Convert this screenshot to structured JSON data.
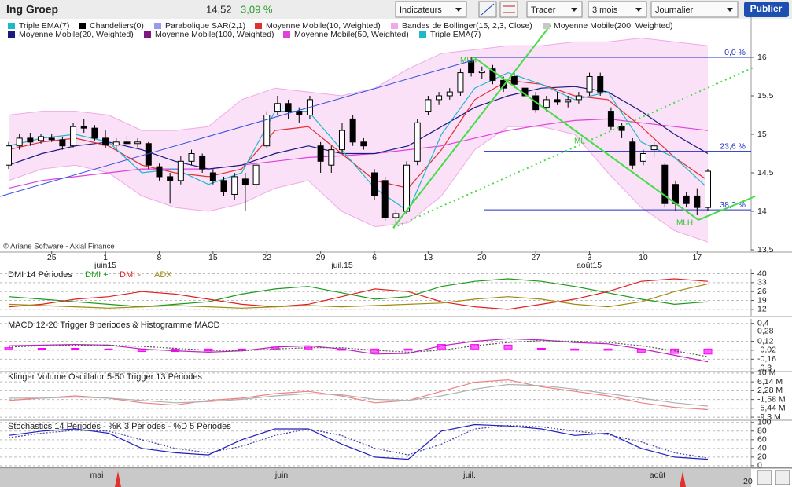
{
  "toolbar": {
    "name": "Ing Groep",
    "price": "14,52",
    "change": "3,09 %",
    "menus": [
      "Indicateurs",
      "Tracer",
      "3 mois",
      "Journalier"
    ],
    "button": "Publier"
  },
  "legend": [
    {
      "name": "Triple EMA(7)",
      "color": "#1fb8c8"
    },
    {
      "name": "Chandeliers(0)",
      "color": "#000000"
    },
    {
      "name": "Parabolique SAR(2,1)",
      "color": "#9999ee"
    },
    {
      "name": "Moyenne Mobile(10, Weighted)",
      "color": "#e03030"
    },
    {
      "name": "Bandes de Bollinger(15, 2,3, Close)",
      "color": "#f0a8e8"
    },
    {
      "name": "Moyenne Mobile(200, Weighted)",
      "color": "#c8c8c8"
    },
    {
      "name": "Moyenne Mobile(20, Weighted)",
      "color": "#1a1a80"
    },
    {
      "name": "Moyenne Mobile(100, Weighted)",
      "color": "#801880"
    },
    {
      "name": "Moyenne Mobile(50, Weighted)",
      "color": "#e040e0"
    },
    {
      "name": "Triple EMA(7)",
      "color": "#1fb8c8"
    }
  ],
  "watermark": "© Ariane Software - Axial Finance",
  "navigator": {
    "labels": [
      "mai",
      "juin",
      "juil.",
      "août"
    ],
    "corner": "20"
  },
  "chart_data": [
    {
      "type": "candlestick",
      "categories": [
        null,
        null,
        null,
        null,
        "25",
        null,
        null,
        null,
        null,
        "1",
        null,
        null,
        null,
        null,
        "8",
        null,
        null,
        null,
        null,
        "15",
        null,
        null,
        null,
        null,
        "22",
        null,
        null,
        null,
        null,
        "29",
        null,
        null,
        null,
        null,
        "6",
        null,
        null,
        null,
        null,
        "13",
        null,
        null,
        null,
        null,
        "20",
        null,
        null,
        null,
        null,
        "27",
        null,
        null,
        null,
        null,
        "3",
        null,
        null,
        null,
        null,
        "10",
        null,
        null,
        null,
        null,
        "17",
        null
      ],
      "month_labels": [
        "juin15",
        "juil.15",
        "août15"
      ],
      "ohlc": [
        [
          14.6,
          14.9,
          14.55,
          14.85
        ],
        [
          14.85,
          15.0,
          14.8,
          14.95
        ],
        [
          14.95,
          15.02,
          14.85,
          14.9
        ],
        [
          14.92,
          15.0,
          14.88,
          14.97
        ],
        [
          14.95,
          15.0,
          14.9,
          14.93
        ],
        [
          14.93,
          14.97,
          14.8,
          14.85
        ],
        [
          14.85,
          15.15,
          14.83,
          15.1
        ],
        [
          15.1,
          15.2,
          15.02,
          15.08
        ],
        [
          15.08,
          15.12,
          14.92,
          14.95
        ],
        [
          14.95,
          15.05,
          14.82,
          14.86
        ],
        [
          14.86,
          14.95,
          14.8,
          14.9
        ],
        [
          14.9,
          14.98,
          14.85,
          14.88
        ],
        [
          14.88,
          14.95,
          14.83,
          14.9
        ],
        [
          14.88,
          14.9,
          14.55,
          14.6
        ],
        [
          14.58,
          14.62,
          14.4,
          14.45
        ],
        [
          14.45,
          14.5,
          14.1,
          14.4
        ],
        [
          14.4,
          14.72,
          14.35,
          14.65
        ],
        [
          14.65,
          14.8,
          14.6,
          14.75
        ],
        [
          14.72,
          14.75,
          14.5,
          14.55
        ],
        [
          14.5,
          14.55,
          14.35,
          14.4
        ],
        [
          14.4,
          14.45,
          14.2,
          14.25
        ],
        [
          14.22,
          14.5,
          14.15,
          14.45
        ],
        [
          14.42,
          14.5,
          14.0,
          14.35
        ],
        [
          14.35,
          14.65,
          14.3,
          14.6
        ],
        [
          14.85,
          15.3,
          14.82,
          15.25
        ],
        [
          15.3,
          15.5,
          15.25,
          15.4
        ],
        [
          15.4,
          15.45,
          15.2,
          15.3
        ],
        [
          15.3,
          15.35,
          15.15,
          15.25
        ],
        [
          15.25,
          15.5,
          15.2,
          15.45
        ],
        [
          14.85,
          14.9,
          14.5,
          14.65
        ],
        [
          14.6,
          14.85,
          14.5,
          14.8
        ],
        [
          14.8,
          15.15,
          14.75,
          15.05
        ],
        [
          15.2,
          15.25,
          14.85,
          14.9
        ],
        [
          14.9,
          14.95,
          14.8,
          14.85
        ],
        [
          14.5,
          14.55,
          14.15,
          14.2
        ],
        [
          14.4,
          14.45,
          13.88,
          13.92
        ],
        [
          13.92,
          14.02,
          13.82,
          13.97
        ],
        [
          14.0,
          14.65,
          13.97,
          14.6
        ],
        [
          14.65,
          15.2,
          14.6,
          15.15
        ],
        [
          15.3,
          15.5,
          15.25,
          15.45
        ],
        [
          15.45,
          15.55,
          15.38,
          15.5
        ],
        [
          15.5,
          15.6,
          15.45,
          15.55
        ],
        [
          15.55,
          15.85,
          15.5,
          15.8
        ],
        [
          15.95,
          16.0,
          15.75,
          15.8
        ],
        [
          15.8,
          15.88,
          15.72,
          15.82
        ],
        [
          15.85,
          15.9,
          15.65,
          15.7
        ],
        [
          15.7,
          15.75,
          15.55,
          15.6
        ],
        [
          15.75,
          15.8,
          15.6,
          15.65
        ],
        [
          15.6,
          15.65,
          15.45,
          15.5
        ],
        [
          15.5,
          15.55,
          15.28,
          15.32
        ],
        [
          15.35,
          15.5,
          15.3,
          15.45
        ],
        [
          15.45,
          15.55,
          15.38,
          15.42
        ],
        [
          15.42,
          15.5,
          15.35,
          15.45
        ],
        [
          15.45,
          15.55,
          15.4,
          15.5
        ],
        [
          15.55,
          15.8,
          15.5,
          15.75
        ],
        [
          15.75,
          15.8,
          15.5,
          15.55
        ],
        [
          15.3,
          15.35,
          15.05,
          15.1
        ],
        [
          15.1,
          15.15,
          14.95,
          15.05
        ],
        [
          14.9,
          14.95,
          14.55,
          14.6
        ],
        [
          14.65,
          14.8,
          14.6,
          14.75
        ],
        [
          14.8,
          14.9,
          14.7,
          14.85
        ],
        [
          14.6,
          14.62,
          14.05,
          14.1
        ],
        [
          14.35,
          14.4,
          14.0,
          14.1
        ],
        [
          14.2,
          14.25,
          14.05,
          14.1
        ],
        [
          14.2,
          14.3,
          13.95,
          14.05
        ],
        [
          14.05,
          14.55,
          14.0,
          14.52
        ]
      ],
      "up_color": "#ffffff",
      "down_color": "#000000",
      "ylim": [
        13.48,
        16.52
      ],
      "yticks": [
        {
          "value": 13.5,
          "label": "13,5"
        },
        14,
        {
          "value": 14.5,
          "label": "14,5"
        },
        15,
        {
          "value": 15.5,
          "label": "15,5"
        },
        16
      ],
      "band": {
        "color": "#f0a8e8",
        "upper": [
          15.25,
          15.3,
          15.3,
          15.25,
          15.05,
          15.05,
          15.1,
          15.45,
          15.6,
          15.55,
          15.5,
          15.6,
          15.85,
          16.05,
          16.1,
          16.15,
          16.15,
          16.2,
          16.2,
          16.25,
          16.2,
          16.15
        ],
        "lower": [
          14.4,
          14.55,
          14.6,
          14.5,
          14.2,
          14.05,
          14.0,
          14.1,
          14.3,
          14.4,
          14.0,
          13.8,
          13.85,
          14.2,
          14.8,
          15.1,
          15.1,
          15.0,
          14.5,
          14.05,
          13.75,
          13.6
        ]
      },
      "overlays": [
        {
          "color": "#e040e0",
          "values": [
            14.3,
            14.4,
            14.45,
            14.5,
            14.55,
            14.55,
            14.55,
            14.6,
            14.65,
            14.7,
            14.72,
            14.75,
            14.8,
            14.85,
            14.95,
            15.05,
            15.12,
            15.18,
            15.2,
            15.15,
            15.1,
            15.05
          ]
        },
        {
          "color": "#1a1a80",
          "values": [
            14.6,
            14.75,
            14.85,
            14.9,
            14.8,
            14.65,
            14.55,
            14.6,
            14.75,
            14.85,
            14.75,
            14.75,
            14.85,
            15.1,
            15.35,
            15.5,
            15.6,
            15.62,
            15.55,
            15.3,
            15.0,
            14.75
          ]
        },
        {
          "color": "#e03030",
          "values": [
            14.8,
            14.9,
            14.95,
            14.85,
            14.6,
            14.5,
            14.45,
            14.55,
            15.05,
            15.1,
            14.75,
            14.4,
            14.3,
            14.8,
            15.45,
            15.7,
            15.65,
            15.5,
            15.45,
            15.1,
            14.7,
            14.4
          ]
        },
        {
          "color": "#1fb8c8",
          "values": [
            14.85,
            14.95,
            15.0,
            14.9,
            14.5,
            14.55,
            14.35,
            14.5,
            15.3,
            15.3,
            14.8,
            14.3,
            14.0,
            15.0,
            15.6,
            15.8,
            15.65,
            15.45,
            15.55,
            14.9,
            14.7,
            14.3
          ]
        }
      ],
      "levels": [
        {
          "label": "0,0 %",
          "value": 16.0
        },
        {
          "label": "23,6 %",
          "value": 14.78
        },
        {
          "label": "38,2 %",
          "value": 14.02
        }
      ],
      "pitchfork_labels": [
        "MLH",
        "ML",
        "MLH"
      ]
    },
    {
      "type": "line",
      "title": "DMI 14 Périodes",
      "ylim": [
        7,
        44
      ],
      "yticks": [
        40,
        33,
        26,
        19,
        12
      ],
      "series": [
        {
          "name": "DMI +",
          "color": "#1a9a1a",
          "values": [
            22,
            20,
            18,
            16,
            14,
            16,
            18,
            24,
            28,
            30,
            25,
            20,
            22,
            30,
            34,
            36,
            34,
            30,
            25,
            20,
            16,
            18
          ]
        },
        {
          "name": "DMI -",
          "color": "#e02020",
          "values": [
            14,
            16,
            20,
            22,
            26,
            24,
            20,
            16,
            14,
            16,
            22,
            28,
            26,
            18,
            14,
            12,
            16,
            20,
            26,
            34,
            36,
            34
          ]
        },
        {
          "name": "ADX",
          "color": "#a08a10",
          "values": [
            16,
            15,
            14,
            13,
            14,
            15,
            14,
            13,
            14,
            15,
            14,
            15,
            16,
            17,
            20,
            22,
            20,
            16,
            14,
            18,
            26,
            32
          ]
        }
      ]
    },
    {
      "type": "line",
      "title": "MACD 12-26   Trigger 9 periodes & Histogramme MACD",
      "ylim": [
        -0.34,
        0.47
      ],
      "yticks": [
        {
          "value": 0.4,
          "label": "0,4"
        },
        {
          "value": 0.28,
          "label": "0,28"
        },
        {
          "value": 0.12,
          "label": "0,12"
        },
        {
          "value": -0.02,
          "label": "-0,02"
        },
        {
          "value": -0.16,
          "label": "-0,16"
        },
        {
          "value": -0.3,
          "label": "-0,3"
        }
      ],
      "series": [
        {
          "type": "bar",
          "color": "#ff00ff",
          "values": [
            0.02,
            0.01,
            0.01,
            0,
            -0.04,
            -0.04,
            -0.03,
            0,
            0.03,
            0.03,
            -0.02,
            -0.06,
            -0.02,
            0.07,
            0.07,
            0.06,
            0.01,
            -0.02,
            -0.02,
            -0.05,
            -0.07,
            -0.08
          ]
        },
        {
          "color": "#c020c0",
          "values": [
            0.05,
            0.06,
            0.07,
            0.06,
            0.0,
            -0.03,
            -0.05,
            -0.03,
            0.03,
            0.05,
            0.0,
            -0.08,
            -0.07,
            0.05,
            0.12,
            0.16,
            0.14,
            0.1,
            0.08,
            0.0,
            -0.1,
            -0.2
          ]
        },
        {
          "color": "#555555",
          "dash": true,
          "values": [
            0.03,
            0.05,
            0.06,
            0.06,
            0.04,
            0.01,
            -0.02,
            -0.03,
            0.0,
            0.02,
            0.02,
            -0.02,
            -0.05,
            -0.02,
            0.05,
            0.1,
            0.13,
            0.12,
            0.1,
            0.05,
            -0.03,
            -0.12
          ]
        }
      ]
    },
    {
      "type": "line",
      "title": "Klinger Volume Oscillator 5-50   Trigger 13 Périodes",
      "ylim": [
        -10.3,
        11
      ],
      "yticks": [
        {
          "value": 10,
          "label": "10 M"
        },
        {
          "value": 6.14,
          "label": "6,14 M"
        },
        {
          "value": 2.28,
          "label": "2,28 M"
        },
        {
          "value": -1.58,
          "label": "-1,58 M"
        },
        {
          "value": -5.44,
          "label": "-5,44 M"
        },
        {
          "value": -9.3,
          "label": "-9,3 M"
        }
      ],
      "series": [
        {
          "color": "#f08080",
          "values": [
            -2,
            -1,
            0,
            -1,
            -3,
            -4,
            -2,
            -1,
            1,
            2,
            0,
            -3,
            -2,
            2,
            6,
            7,
            4,
            2,
            0,
            -3,
            -5,
            -6
          ]
        },
        {
          "color": "#b0b0b0",
          "values": [
            -1,
            -1,
            -0.5,
            -1,
            -2,
            -3,
            -2.5,
            -1.5,
            0,
            1,
            0.5,
            -1.5,
            -2,
            0,
            3,
            5,
            4.5,
            3,
            1,
            -1,
            -3,
            -4.5
          ]
        }
      ]
    },
    {
      "type": "line",
      "title": "Stochastics 14 Périodes  -  %K 3 Périodes  -  %D 5 Périodes",
      "ylim": [
        -2,
        105
      ],
      "yticks": [
        100,
        80,
        60,
        40,
        20,
        0
      ],
      "series": [
        {
          "color": "#2020c0",
          "values": [
            70,
            80,
            85,
            75,
            40,
            30,
            25,
            60,
            85,
            85,
            50,
            20,
            15,
            80,
            95,
            92,
            85,
            70,
            75,
            40,
            20,
            15
          ]
        },
        {
          "color": "#4040a0",
          "dash": true,
          "values": [
            65,
            75,
            82,
            80,
            60,
            40,
            30,
            45,
            70,
            85,
            70,
            40,
            25,
            50,
            85,
            93,
            90,
            80,
            72,
            55,
            30,
            18
          ]
        }
      ]
    }
  ]
}
